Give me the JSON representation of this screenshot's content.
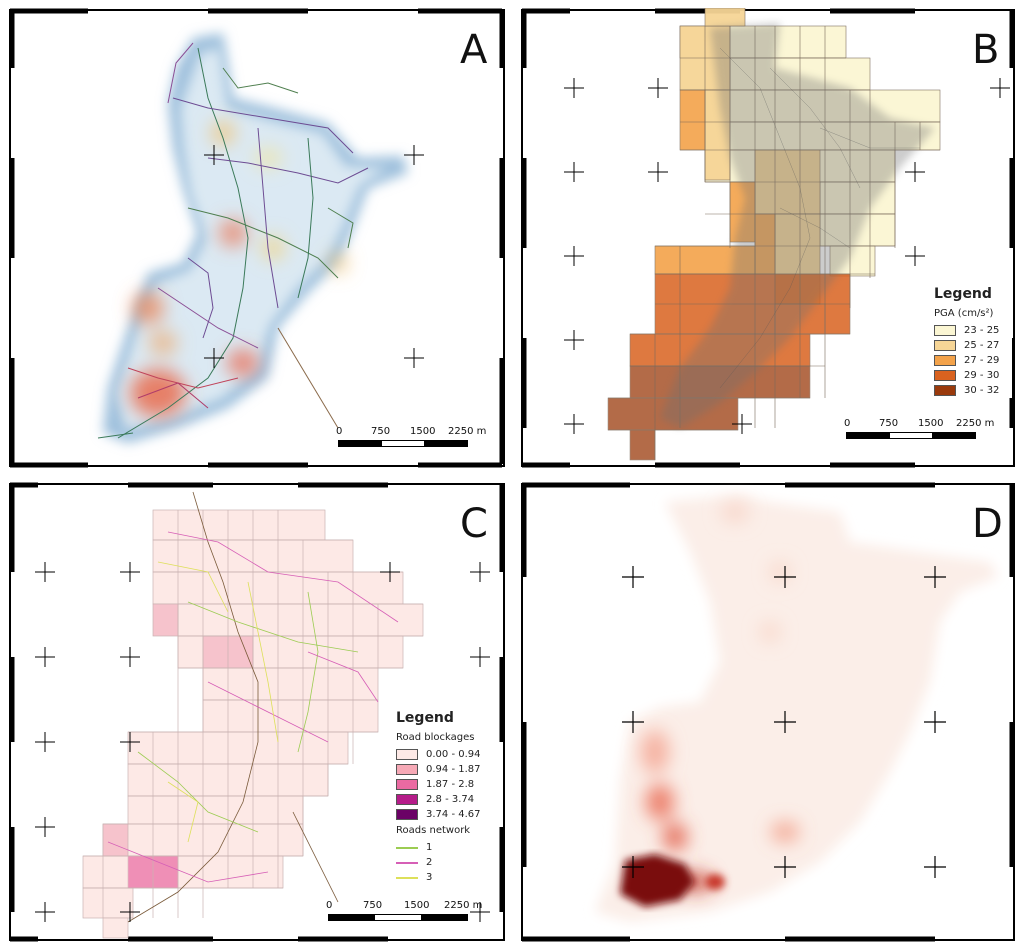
{
  "panels": {
    "a": {
      "letter": "A"
    },
    "b": {
      "letter": "B",
      "legend": {
        "title": "Legend",
        "subtitle": "PGA (cm/s²)",
        "classes": [
          {
            "label": "23 - 25",
            "color": "#fbf6d3"
          },
          {
            "label": "25 - 27",
            "color": "#f6d596"
          },
          {
            "label": "27 - 29",
            "color": "#f3a24a"
          },
          {
            "label": "29 - 30",
            "color": "#d9621f"
          },
          {
            "label": "30 - 32",
            "color": "#9a3a0c"
          }
        ]
      }
    },
    "c": {
      "letter": "C",
      "legend": {
        "title": "Legend",
        "subtitle": "Road blockages",
        "classes": [
          {
            "label": "0.00 - 0.94",
            "color": "#fde9e6"
          },
          {
            "label": "0.94 - 1.87",
            "color": "#f6a9b6"
          },
          {
            "label": "1.87 - 2.8",
            "color": "#ea6aa2"
          },
          {
            "label": "2.8 - 3.74",
            "color": "#b51c89"
          },
          {
            "label": "3.74 - 4.67",
            "color": "#6b0166"
          }
        ],
        "roads_title": "Roads network",
        "roads": [
          {
            "label": "1",
            "color": "#9ccc52"
          },
          {
            "label": "2",
            "color": "#d65fb6"
          },
          {
            "label": "3",
            "color": "#dde05a"
          }
        ]
      }
    },
    "d": {
      "letter": "D"
    }
  },
  "scalebar": {
    "labels": [
      "0",
      "750",
      "1500",
      "2250 m"
    ]
  }
}
